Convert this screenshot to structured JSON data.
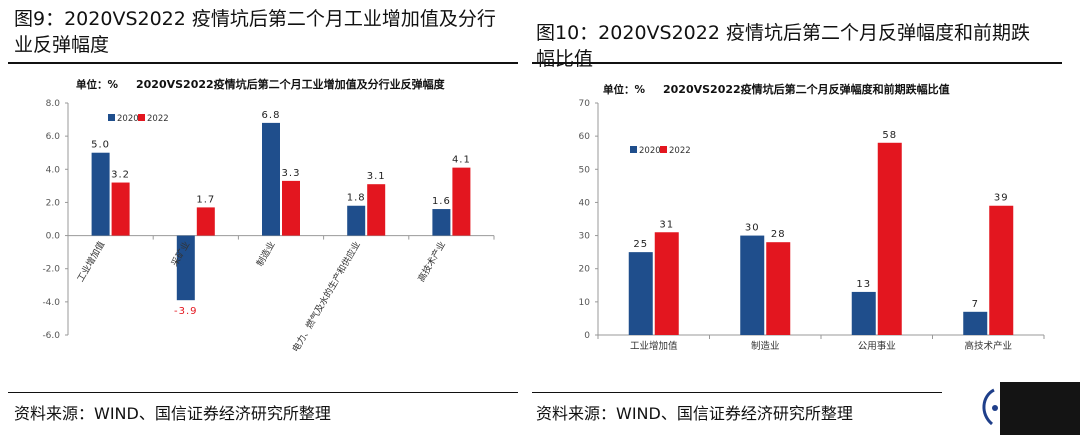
{
  "figures": [
    {
      "fig_title": "图9：2020VS2022 疫情坑后第二个月工业增加值及分行业反弹幅度",
      "source": "资料来源：WIND、国信证券经济研究所整理"
    },
    {
      "fig_title": "图10：2020VS2022 疫情坑后第二个月反弹幅度和前期跌幅比值",
      "source": "资料来源：WIND、国信证券经济研究所整理"
    }
  ],
  "colors": {
    "s2020": "#1f4e8c",
    "s2022": "#e3161f",
    "axis": "#999999",
    "text": "#333333"
  },
  "chart_data": [
    {
      "type": "bar",
      "title": "2020VS2022疫情坑后第二个月工业增加值及分行业反弹幅度",
      "unit_label": "单位：%",
      "categories": [
        "工业增加值",
        "采矿业",
        "制造业",
        "电力、燃气及水的生产和供应业",
        "高技术产业"
      ],
      "series": [
        {
          "name": "2020",
          "values": [
            5.0,
            -3.9,
            6.8,
            1.8,
            1.6
          ]
        },
        {
          "name": "2022",
          "values": [
            3.2,
            1.7,
            3.3,
            3.1,
            4.1
          ]
        }
      ],
      "ylim": [
        -6.0,
        8.0
      ],
      "yticks": [
        "8.0",
        "6.0",
        "4.0",
        "2.0",
        "0.0",
        "-2.0",
        "-4.0",
        "-6.0"
      ],
      "data_labels": [
        [
          "5.0",
          "-3.9",
          "6.8",
          "1.8",
          "1.6"
        ],
        [
          "3.2",
          "1.7",
          "3.3",
          "3.1",
          "4.1"
        ]
      ],
      "legend": "top-left",
      "grid": false
    },
    {
      "type": "bar",
      "title": "2020VS2022疫情坑后第二个月反弹幅度和前期跌幅比值",
      "unit_label": "单位：%",
      "categories": [
        "工业增加值",
        "制造业",
        "公用事业",
        "高技术产业"
      ],
      "series": [
        {
          "name": "2020",
          "values": [
            25,
            30,
            13,
            7
          ]
        },
        {
          "name": "2022",
          "values": [
            31,
            28,
            58,
            39
          ]
        }
      ],
      "ylim": [
        0,
        70
      ],
      "yticks": [
        "70",
        "60",
        "50",
        "40",
        "30",
        "20",
        "10",
        "0"
      ],
      "data_labels": [
        [
          "25",
          "30",
          "13",
          "7"
        ],
        [
          "31",
          "28",
          "58",
          "39"
        ]
      ],
      "legend": "top-left",
      "grid": false
    }
  ]
}
